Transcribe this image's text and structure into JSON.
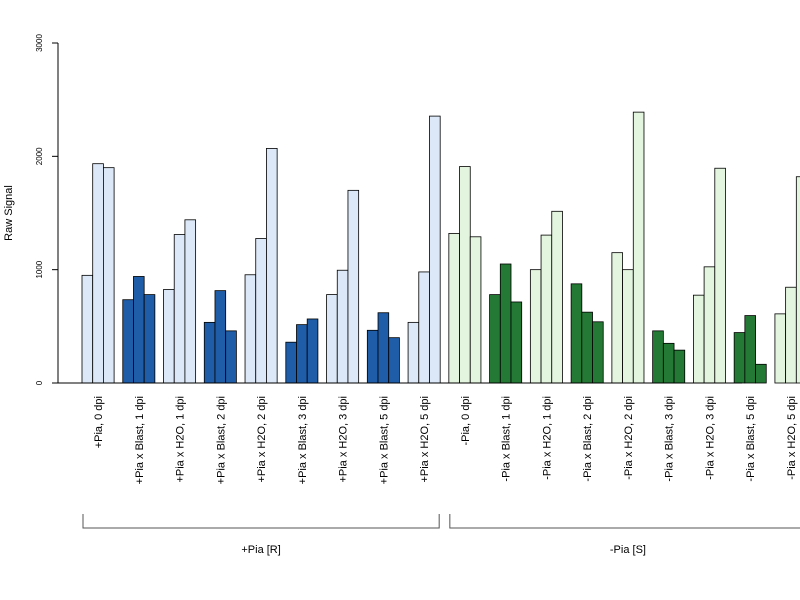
{
  "chart_data": {
    "type": "bar",
    "title": "",
    "xlabel": "",
    "ylabel": "Raw Signal",
    "ylim": [
      0,
      3000
    ],
    "yticks": [
      0,
      1000,
      2000,
      3000
    ],
    "grid": false,
    "bars_per_category": 3,
    "categories": [
      {
        "label": "+Pia, 0 dpi",
        "values": [
          950,
          1935,
          1900
        ],
        "color": "#dce8f7"
      },
      {
        "label": "+Pia x Blast, 1 dpi",
        "values": [
          735,
          940,
          780
        ],
        "color": "#1f5da8"
      },
      {
        "label": "+Pia x H2O, 1 dpi",
        "values": [
          825,
          1310,
          1440
        ],
        "color": "#dce8f7"
      },
      {
        "label": "+Pia x Blast, 2 dpi",
        "values": [
          535,
          815,
          460
        ],
        "color": "#1f5da8"
      },
      {
        "label": "+Pia x H2O, 2 dpi",
        "values": [
          955,
          1275,
          2070
        ],
        "color": "#dce8f7"
      },
      {
        "label": "+Pia x Blast, 3 dpi",
        "values": [
          360,
          515,
          565
        ],
        "color": "#1f5da8"
      },
      {
        "label": "+Pia x H2O, 3 dpi",
        "values": [
          780,
          995,
          1700
        ],
        "color": "#dce8f7"
      },
      {
        "label": "+Pia x Blast, 5 dpi",
        "values": [
          465,
          620,
          400
        ],
        "color": "#1f5da8"
      },
      {
        "label": "+Pia x H2O, 5 dpi",
        "values": [
          535,
          980,
          2355
        ],
        "color": "#dce8f7"
      },
      {
        "label": "-Pia, 0 dpi",
        "values": [
          1320,
          1910,
          1290
        ],
        "color": "#e3f5de"
      },
      {
        "label": "-Pia x Blast, 1 dpi",
        "values": [
          780,
          1050,
          715
        ],
        "color": "#247a35"
      },
      {
        "label": "-Pia x H2O, 1 dpi",
        "values": [
          1000,
          1305,
          1515
        ],
        "color": "#e3f5de"
      },
      {
        "label": "-Pia x Blast, 2 dpi",
        "values": [
          875,
          625,
          540
        ],
        "color": "#247a35"
      },
      {
        "label": "-Pia x H2O, 2 dpi",
        "values": [
          1150,
          1000,
          2390
        ],
        "color": "#e3f5de"
      },
      {
        "label": "-Pia x Blast, 3 dpi",
        "values": [
          460,
          350,
          290
        ],
        "color": "#247a35"
      },
      {
        "label": "-Pia x H2O, 3 dpi",
        "values": [
          775,
          1025,
          1895
        ],
        "color": "#e3f5de"
      },
      {
        "label": "-Pia x Blast, 5 dpi",
        "values": [
          445,
          595,
          165
        ],
        "color": "#247a35"
      },
      {
        "label": "-Pia x H2O, 5 dpi",
        "values": [
          610,
          845,
          1820
        ],
        "color": "#e3f5de"
      }
    ],
    "groups": [
      {
        "label": "+Pia [R]",
        "categories": [
          0,
          8
        ]
      },
      {
        "label": "-Pia [S]",
        "categories": [
          9,
          17
        ]
      }
    ]
  }
}
